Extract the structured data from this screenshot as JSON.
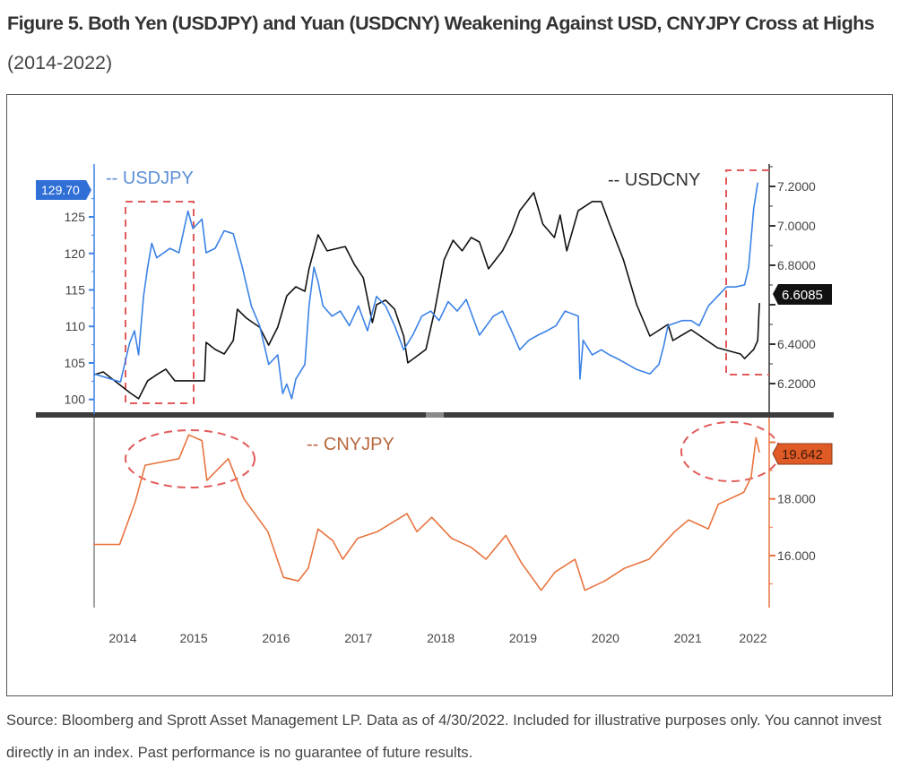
{
  "title": {
    "bold": "Figure 5. Both Yen (USDJPY) and Yuan (USDCNY) Weakening Against USD, CNYJPY Cross at Highs",
    "light": "(2014-2022)"
  },
  "caption": "Source: Bloomberg and Sprott Asset Management LP. Data as of 4/30/2022. Included for illustrative purposes only. You cannot invest directly in an index. Past performance is no guarantee of future results.",
  "colors": {
    "usdjpy": "#3b82e6",
    "usdcny": "#111111",
    "cnyjpy": "#e8743f",
    "annotation": "#e35a5a"
  },
  "chart_data": [
    {
      "type": "line",
      "panel": "top",
      "xlim": [
        2014.29,
        2022.38
      ],
      "x_ticks": [
        "2014",
        "2015",
        "2016",
        "2017",
        "2018",
        "2019",
        "2020",
        "2021",
        "2022"
      ],
      "left_axis": {
        "series": "USDJPY",
        "ylim": [
          98,
          132
        ],
        "ticks": [
          "100",
          "105",
          "110",
          "115",
          "120",
          "125"
        ],
        "last_value_label": "129.70"
      },
      "right_axis": {
        "series": "USDCNY",
        "ylim": [
          6.0455,
          7.3045
        ],
        "ticks": [
          "6.2000",
          "6.4000",
          "6.6000",
          "6.8000",
          "7.0000",
          "7.2000"
        ],
        "tick_labels": [
          "6.2000",
          "6.4000",
          "6.8000",
          "7.0000",
          "7.2000"
        ],
        "last_value_label": "6.6085"
      },
      "series": [
        {
          "name": "USDJPY",
          "legend": "-- USDJPY",
          "axis": "left",
          "points": [
            [
              2014.29,
              103.5
            ],
            [
              2014.61,
              102.4
            ],
            [
              2014.72,
              107.7
            ],
            [
              2014.78,
              109.4
            ],
            [
              2014.83,
              106.1
            ],
            [
              2014.89,
              114.1
            ],
            [
              2014.94,
              118.1
            ],
            [
              2014.99,
              121.4
            ],
            [
              2015.05,
              119.4
            ],
            [
              2015.21,
              120.7
            ],
            [
              2015.32,
              120.1
            ],
            [
              2015.43,
              125.8
            ],
            [
              2015.49,
              123.4
            ],
            [
              2015.6,
              124.7
            ],
            [
              2015.65,
              120.1
            ],
            [
              2015.76,
              120.7
            ],
            [
              2015.87,
              123.1
            ],
            [
              2015.98,
              122.7
            ],
            [
              2016.09,
              118.1
            ],
            [
              2016.2,
              112.8
            ],
            [
              2016.3,
              110.1
            ],
            [
              2016.41,
              104.8
            ],
            [
              2016.52,
              106.1
            ],
            [
              2016.58,
              100.8
            ],
            [
              2016.63,
              102.1
            ],
            [
              2016.69,
              100.1
            ],
            [
              2016.74,
              102.8
            ],
            [
              2016.85,
              104.8
            ],
            [
              2016.9,
              112.8
            ],
            [
              2016.96,
              118.1
            ],
            [
              2017.01,
              116.1
            ],
            [
              2017.07,
              112.8
            ],
            [
              2017.18,
              111.4
            ],
            [
              2017.28,
              112.1
            ],
            [
              2017.39,
              110.1
            ],
            [
              2017.5,
              112.8
            ],
            [
              2017.61,
              109.4
            ],
            [
              2017.72,
              114.1
            ],
            [
              2017.83,
              112.8
            ],
            [
              2017.94,
              110.1
            ],
            [
              2018.05,
              106.8
            ],
            [
              2018.16,
              108.8
            ],
            [
              2018.27,
              111.4
            ],
            [
              2018.38,
              112.1
            ],
            [
              2018.48,
              110.8
            ],
            [
              2018.59,
              113.4
            ],
            [
              2018.7,
              112.1
            ],
            [
              2018.81,
              113.7
            ],
            [
              2018.97,
              108.8
            ],
            [
              2019.14,
              111.4
            ],
            [
              2019.25,
              112.1
            ],
            [
              2019.36,
              109.4
            ],
            [
              2019.46,
              106.8
            ],
            [
              2019.57,
              108.1
            ],
            [
              2019.68,
              108.8
            ],
            [
              2019.79,
              109.4
            ],
            [
              2019.9,
              110.1
            ],
            [
              2020.01,
              112.1
            ],
            [
              2020.17,
              111.4
            ],
            [
              2020.19,
              102.8
            ],
            [
              2020.23,
              108.1
            ],
            [
              2020.34,
              106.1
            ],
            [
              2020.45,
              106.8
            ],
            [
              2020.55,
              106.1
            ],
            [
              2020.66,
              105.5
            ],
            [
              2020.77,
              104.8
            ],
            [
              2020.88,
              104.1
            ],
            [
              2021.04,
              103.5
            ],
            [
              2021.15,
              104.8
            ],
            [
              2021.21,
              107.4
            ],
            [
              2021.26,
              110.1
            ],
            [
              2021.43,
              110.8
            ],
            [
              2021.54,
              110.8
            ],
            [
              2021.64,
              110.1
            ],
            [
              2021.75,
              112.8
            ],
            [
              2021.86,
              114.1
            ],
            [
              2021.97,
              115.4
            ],
            [
              2022.08,
              115.4
            ],
            [
              2022.19,
              115.7
            ],
            [
              2022.24,
              118.1
            ],
            [
              2022.3,
              126.1
            ],
            [
              2022.35,
              129.7
            ]
          ]
        },
        {
          "name": "USDCNY",
          "legend": "-- USDCNY",
          "axis": "right",
          "points": [
            [
              2014.29,
              6.245
            ],
            [
              2014.4,
              6.259
            ],
            [
              2014.61,
              6.191
            ],
            [
              2014.72,
              6.155
            ],
            [
              2014.83,
              6.123
            ],
            [
              2014.94,
              6.214
            ],
            [
              2015.05,
              6.245
            ],
            [
              2015.16,
              6.273
            ],
            [
              2015.27,
              6.214
            ],
            [
              2015.63,
              6.214
            ],
            [
              2015.65,
              6.409
            ],
            [
              2015.76,
              6.373
            ],
            [
              2015.87,
              6.35
            ],
            [
              2015.98,
              6.418
            ],
            [
              2016.03,
              6.577
            ],
            [
              2016.14,
              6.532
            ],
            [
              2016.3,
              6.486
            ],
            [
              2016.41,
              6.395
            ],
            [
              2016.52,
              6.486
            ],
            [
              2016.63,
              6.645
            ],
            [
              2016.74,
              6.691
            ],
            [
              2016.85,
              6.668
            ],
            [
              2016.9,
              6.782
            ],
            [
              2017.01,
              6.955
            ],
            [
              2017.12,
              6.873
            ],
            [
              2017.34,
              6.895
            ],
            [
              2017.45,
              6.805
            ],
            [
              2017.56,
              6.736
            ],
            [
              2017.67,
              6.509
            ],
            [
              2017.72,
              6.6
            ],
            [
              2017.83,
              6.623
            ],
            [
              2017.94,
              6.577
            ],
            [
              2018.05,
              6.441
            ],
            [
              2018.1,
              6.305
            ],
            [
              2018.32,
              6.373
            ],
            [
              2018.43,
              6.577
            ],
            [
              2018.54,
              6.827
            ],
            [
              2018.65,
              6.927
            ],
            [
              2018.76,
              6.873
            ],
            [
              2018.87,
              6.941
            ],
            [
              2018.97,
              6.918
            ],
            [
              2019.08,
              6.782
            ],
            [
              2019.25,
              6.873
            ],
            [
              2019.36,
              6.964
            ],
            [
              2019.46,
              7.077
            ],
            [
              2019.63,
              7.168
            ],
            [
              2019.74,
              7.009
            ],
            [
              2019.88,
              6.941
            ],
            [
              2019.95,
              7.055
            ],
            [
              2020.03,
              6.873
            ],
            [
              2020.17,
              7.077
            ],
            [
              2020.34,
              7.123
            ],
            [
              2020.45,
              7.123
            ],
            [
              2020.55,
              7.009
            ],
            [
              2020.72,
              6.827
            ],
            [
              2020.88,
              6.6
            ],
            [
              2021.04,
              6.441
            ],
            [
              2021.26,
              6.5
            ],
            [
              2021.32,
              6.418
            ],
            [
              2021.54,
              6.473
            ],
            [
              2021.86,
              6.382
            ],
            [
              2022.14,
              6.35
            ],
            [
              2022.19,
              6.327
            ],
            [
              2022.3,
              6.373
            ],
            [
              2022.35,
              6.418
            ],
            [
              2022.37,
              6.6085
            ]
          ]
        }
      ]
    },
    {
      "type": "line",
      "panel": "bottom",
      "xlim": [
        2014.29,
        2022.38
      ],
      "right_axis": {
        "series": "CNYJPY",
        "ylim": [
          14.16,
          20.87
        ],
        "ticks": [
          "16.000",
          "18.000",
          "20.000"
        ],
        "last_value_label": "19.642"
      },
      "series": [
        {
          "name": "CNYJPY",
          "legend": "-- CNYJPY",
          "axis": "right",
          "points": [
            [
              2014.28,
              16.39
            ],
            [
              2014.6,
              16.39
            ],
            [
              2014.79,
              17.9
            ],
            [
              2014.91,
              19.19
            ],
            [
              2015.32,
              19.42
            ],
            [
              2015.44,
              20.26
            ],
            [
              2015.6,
              20.06
            ],
            [
              2015.66,
              18.65
            ],
            [
              2015.92,
              19.42
            ],
            [
              2016.11,
              18.0
            ],
            [
              2016.4,
              16.84
            ],
            [
              2016.59,
              15.23
            ],
            [
              2016.77,
              15.1
            ],
            [
              2016.89,
              15.55
            ],
            [
              2017.01,
              16.94
            ],
            [
              2017.19,
              16.52
            ],
            [
              2017.31,
              15.87
            ],
            [
              2017.49,
              16.61
            ],
            [
              2017.73,
              16.84
            ],
            [
              2018.09,
              17.48
            ],
            [
              2018.21,
              16.84
            ],
            [
              2018.39,
              17.35
            ],
            [
              2018.63,
              16.61
            ],
            [
              2018.87,
              16.29
            ],
            [
              2019.05,
              15.87
            ],
            [
              2019.29,
              16.71
            ],
            [
              2019.48,
              15.74
            ],
            [
              2019.72,
              14.77
            ],
            [
              2019.89,
              15.42
            ],
            [
              2020.13,
              15.87
            ],
            [
              2020.25,
              14.77
            ],
            [
              2020.49,
              15.1
            ],
            [
              2020.73,
              15.55
            ],
            [
              2021.03,
              15.87
            ],
            [
              2021.34,
              16.84
            ],
            [
              2021.51,
              17.26
            ],
            [
              2021.75,
              16.94
            ],
            [
              2021.87,
              17.81
            ],
            [
              2022.18,
              18.23
            ],
            [
              2022.27,
              18.77
            ],
            [
              2022.33,
              20.16
            ],
            [
              2022.37,
              19.64
            ]
          ]
        }
      ]
    }
  ]
}
